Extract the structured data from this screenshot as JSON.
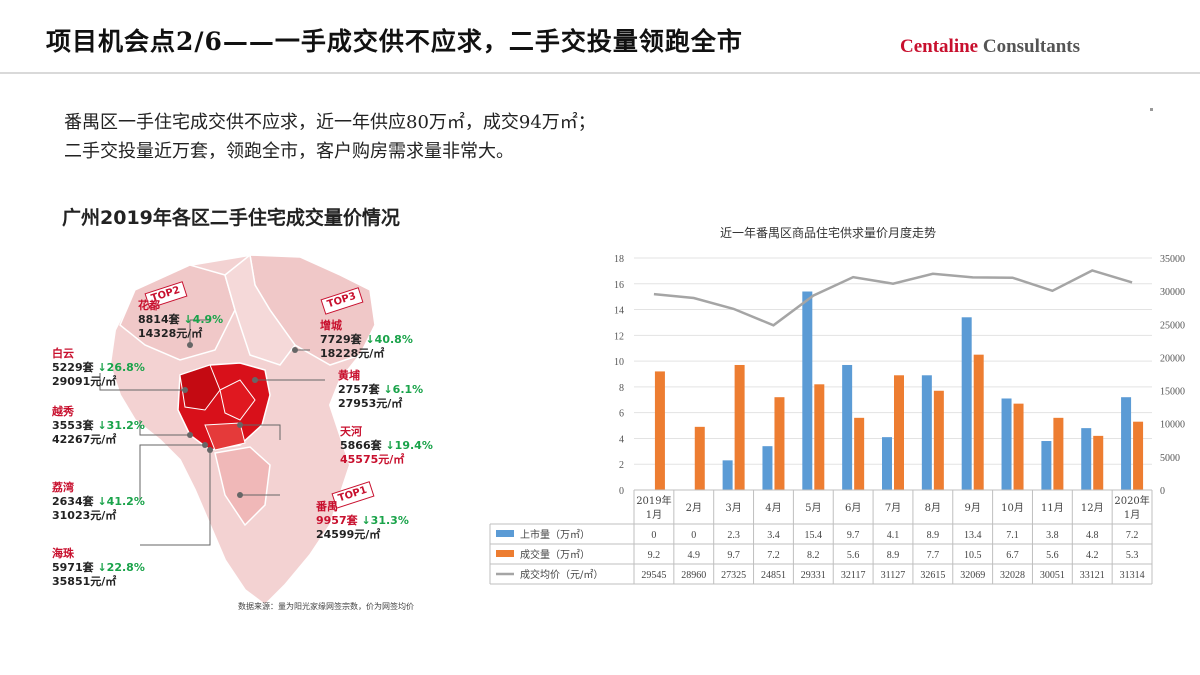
{
  "header": {
    "title": "项目机会点2/6——一手成交供不应求，二手交投量领跑全市",
    "brand_red": "Centaline",
    "brand_grey": "Consultants"
  },
  "intro": {
    "line1": "番禺区一手住宅成交供不应求，近一年供应80万㎡，成交94万㎡；",
    "line2": "二手交投量近万套，领跑全市，客户购房需求量非常大。"
  },
  "map": {
    "title": "广州2019年各区二手住宅成交量价情况",
    "source": "数据来源：量为阳光家缘网签宗数，价为网签均价",
    "districts": [
      {
        "name": "花都",
        "volume": "8814套",
        "change": "↓4.9%",
        "price": "14328元/㎡",
        "badge": "TOP2"
      },
      {
        "name": "增城",
        "volume": "7729套",
        "change": "↓40.8%",
        "price": "18228元/㎡",
        "badge": "TOP3"
      },
      {
        "name": "白云",
        "volume": "5229套",
        "change": "↓26.8%",
        "price": "29091元/㎡"
      },
      {
        "name": "黄埔",
        "volume": "2757套",
        "change": "↓6.1%",
        "price": "27953元/㎡"
      },
      {
        "name": "越秀",
        "volume": "3553套",
        "change": "↓31.2%",
        "price": "42267元/㎡"
      },
      {
        "name": "天河",
        "volume": "5866套",
        "change": "↓19.4%",
        "price": "45575元/㎡"
      },
      {
        "name": "荔湾",
        "volume": "2634套",
        "change": "↓41.2%",
        "price": "31023元/㎡"
      },
      {
        "name": "番禺",
        "volume": "9957套",
        "change": "↓31.3%",
        "price": "24599元/㎡",
        "badge": "TOP1"
      },
      {
        "name": "海珠",
        "volume": "5971套",
        "change": "↓22.8%",
        "price": "35851元/㎡"
      }
    ]
  },
  "chart_data": {
    "type": "bar",
    "title": "近一年番禺区商品住宅供求量价月度走势",
    "categories": [
      "2019年1月",
      "2月",
      "3月",
      "4月",
      "5月",
      "6月",
      "7月",
      "8月",
      "9月",
      "10月",
      "11月",
      "12月",
      "2020年1月"
    ],
    "series": [
      {
        "name": "上市量（万㎡）",
        "kind": "bar",
        "axis": "left",
        "color": "#5b9bd5",
        "values": [
          0,
          0,
          2.3,
          3.4,
          15.4,
          9.7,
          4.1,
          8.9,
          13.4,
          7.1,
          3.8,
          4.8,
          7.2
        ],
        "labels": [
          "0",
          "0",
          "2.3",
          "3.4",
          "15.4",
          "9.7",
          "4.1",
          "8.9",
          "13.4",
          "7.1",
          "3.8",
          "4.8",
          "7.2"
        ]
      },
      {
        "name": "成交量（万㎡）",
        "kind": "bar",
        "axis": "left",
        "color": "#ed7d31",
        "values": [
          9.2,
          4.9,
          9.7,
          7.2,
          8.2,
          5.6,
          8.9,
          7.7,
          10.5,
          6.7,
          5.6,
          4.2,
          5.3
        ],
        "labels": [
          "9.2",
          "4.9",
          "9.7",
          "7.2",
          "8.2",
          "5.6",
          "8.9",
          "7.7",
          "10.5",
          "6.7",
          "5.6",
          "4.2",
          "5.3"
        ]
      },
      {
        "name": "成交均价（元/㎡）",
        "kind": "line",
        "axis": "right",
        "color": "#a5a5a5",
        "values": [
          29545,
          28960,
          27325,
          24851,
          29331,
          32117,
          31127,
          32615,
          32069,
          32028,
          30051,
          33121,
          31314
        ],
        "labels": [
          "29545",
          "28960",
          "27325",
          "24851",
          "29331",
          "32117",
          "31127",
          "32615",
          "32069",
          "32028",
          "30051",
          "33121",
          "31314"
        ]
      }
    ],
    "y_left": {
      "min": 0,
      "max": 18,
      "ticks": [
        "0",
        "2",
        "4",
        "6",
        "8",
        "10",
        "12",
        "14",
        "16",
        "18"
      ]
    },
    "y_right": {
      "min": 0,
      "max": 35000,
      "ticks": [
        "0",
        "5000",
        "10000",
        "15000",
        "20000",
        "25000",
        "30000",
        "35000"
      ]
    },
    "grid": true,
    "legend": "bottom-table"
  }
}
